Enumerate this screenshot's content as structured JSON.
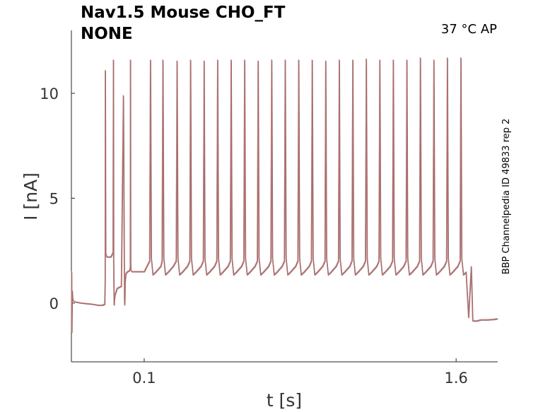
{
  "chart_data": {
    "type": "line",
    "title_line1": "Nav1.5  Mouse  CHO_FT",
    "title_line2": "NONE",
    "condition_label": "37 °C  AP",
    "side_label": "BBP Channelpedia ID 49833 rep 2",
    "xlabel": "t [s]",
    "ylabel": "I [nA]",
    "xlim": [
      -0.25,
      1.8
    ],
    "ylim": [
      -2.8,
      13.0
    ],
    "x_ticks": [
      0.1,
      1.6
    ],
    "x_tick_labels": [
      "0.1",
      "1.6"
    ],
    "y_ticks": [
      0,
      5,
      10
    ],
    "y_tick_labels": [
      "0",
      "5",
      "10"
    ],
    "grid": false,
    "line_colors": [
      "#b07070",
      "#8a5555",
      "#c08080"
    ],
    "series": [
      {
        "x": [
          -0.249,
          -0.248,
          -0.246,
          -0.244,
          -0.24,
          -0.23,
          -0.2,
          -0.15,
          -0.12,
          -0.1,
          -0.09,
          -0.088,
          -0.087,
          -0.085,
          -0.083,
          -0.08,
          -0.06,
          -0.05,
          -0.048,
          -0.047,
          -0.046,
          -0.0455,
          -0.045,
          -0.044,
          -0.043,
          -0.04,
          -0.03,
          -0.01,
          0.0,
          0.005,
          0.006,
          0.007,
          0.008,
          0.012,
          0.02,
          0.03,
          0.031,
          0.033,
          0.034,
          0.035,
          0.036,
          0.04,
          0.05,
          0.06,
          0.065,
          0.07,
          0.074,
          0.075,
          0.08,
          0.085,
          0.09,
          0.1,
          0.12,
          0.15,
          0.2,
          0.25,
          0.3,
          0.35,
          0.4,
          0.5,
          0.6,
          0.7,
          0.8,
          0.9,
          1.0,
          1.1,
          1.2,
          1.3,
          1.4,
          1.5,
          1.55,
          1.6,
          1.62,
          1.64,
          1.66,
          1.68,
          1.7,
          1.72,
          1.75,
          1.78,
          1.8
        ],
        "y": [
          1.5,
          -1.4,
          0.6,
          0.2,
          0.1,
          0.05,
          0.0,
          -0.05,
          -0.1,
          -0.1,
          -0.05,
          1.0,
          11.1,
          2.4,
          2.3,
          2.2,
          2.2,
          2.4,
          11.6,
          2.0,
          1.0,
          0.5,
          -0.1,
          0.0,
          0.2,
          0.4,
          0.7,
          0.8,
          9.9,
          0.3,
          -0.1,
          0.2,
          1.0,
          1.4,
          1.5,
          1.55,
          1.6,
          1.7,
          11.6,
          1.9,
          1.6,
          1.5,
          1.5,
          1.5,
          1.5,
          1.5,
          1.5,
          1.5,
          1.5,
          1.5,
          1.5,
          1.5,
          1.5,
          1.5,
          1.5,
          1.5,
          1.5,
          1.5,
          1.5,
          1.5,
          1.5,
          1.5,
          1.5,
          1.5,
          1.5,
          1.5,
          1.5,
          1.5,
          1.5,
          1.5,
          1.5,
          1.2,
          0.4,
          -0.3,
          -0.7,
          -0.85,
          -0.85,
          -0.8,
          -0.8,
          -0.78,
          -0.75
        ]
      }
    ],
    "spikes": {
      "times": [
        0.13,
        0.19,
        0.258,
        0.323,
        0.388,
        0.453,
        0.518,
        0.583,
        0.648,
        0.713,
        0.778,
        0.843,
        0.908,
        0.973,
        1.038,
        1.103,
        1.168,
        1.233,
        1.298,
        1.363,
        1.428,
        1.493,
        1.558,
        1.623
      ],
      "peaks": [
        11.6,
        11.6,
        11.55,
        11.6,
        11.55,
        11.6,
        11.6,
        11.6,
        11.55,
        11.6,
        11.6,
        11.6,
        11.6,
        11.55,
        11.6,
        11.6,
        11.65,
        11.6,
        11.6,
        11.6,
        11.7,
        11.6,
        11.7,
        11.7
      ],
      "trough": 1.35,
      "baseline": 1.75
    }
  }
}
